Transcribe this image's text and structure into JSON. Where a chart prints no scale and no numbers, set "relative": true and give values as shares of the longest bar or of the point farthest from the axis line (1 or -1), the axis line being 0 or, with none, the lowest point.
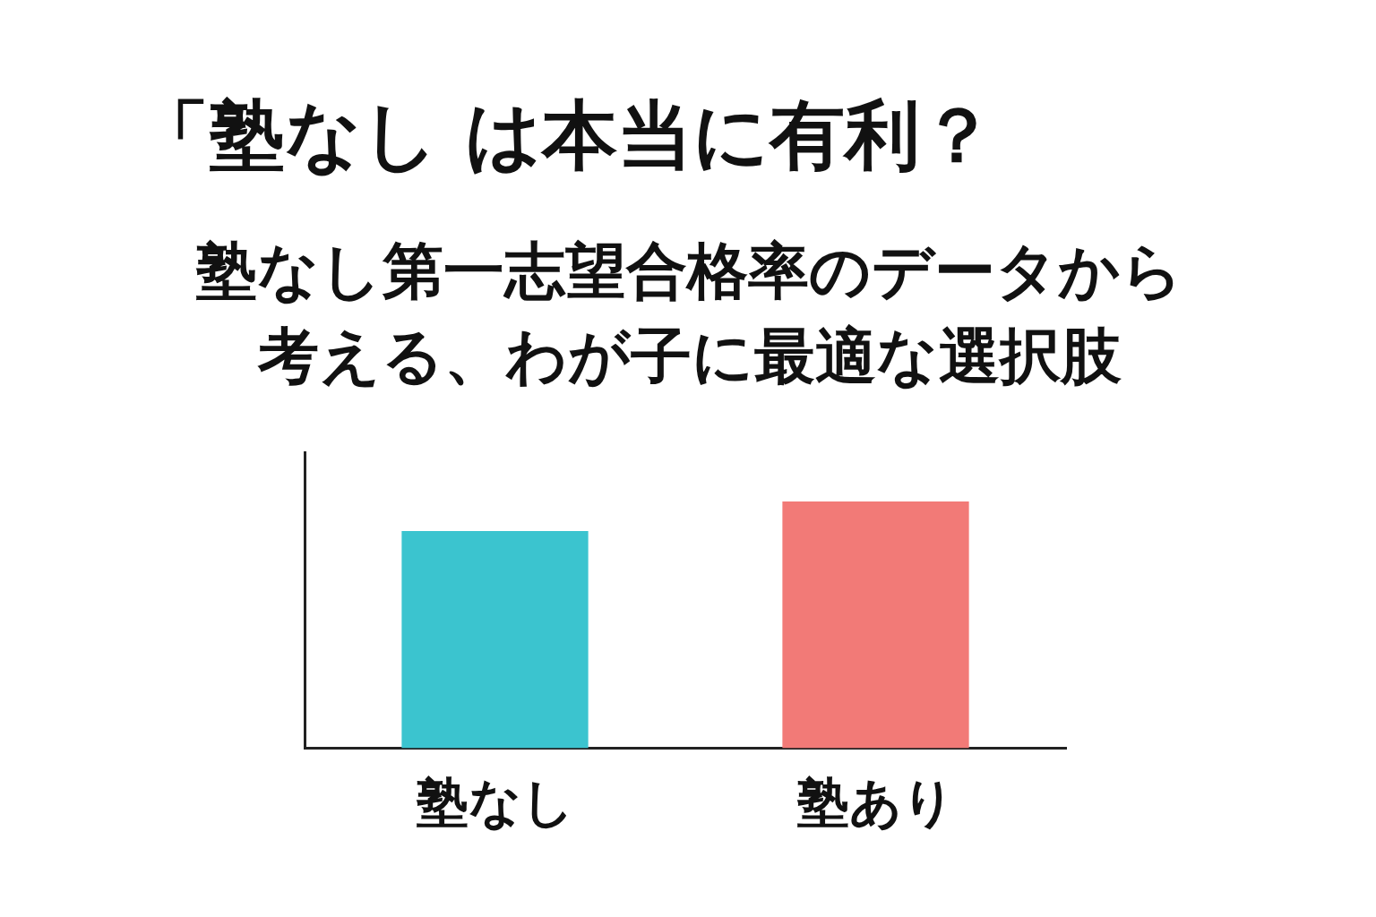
{
  "chart_data": {
    "type": "bar",
    "title": "「塾なし は本当に有利？",
    "subtitle": "塾なし第一志望合格率のデータから考える、わが子に最適な選択肢",
    "categories": [
      "塾なし",
      "塾あり"
    ],
    "values": [
      0.88,
      1
    ],
    "colors": [
      "#3bc4cf",
      "#f27a77"
    ],
    "relative": true,
    "grid": false,
    "legend": false
  }
}
